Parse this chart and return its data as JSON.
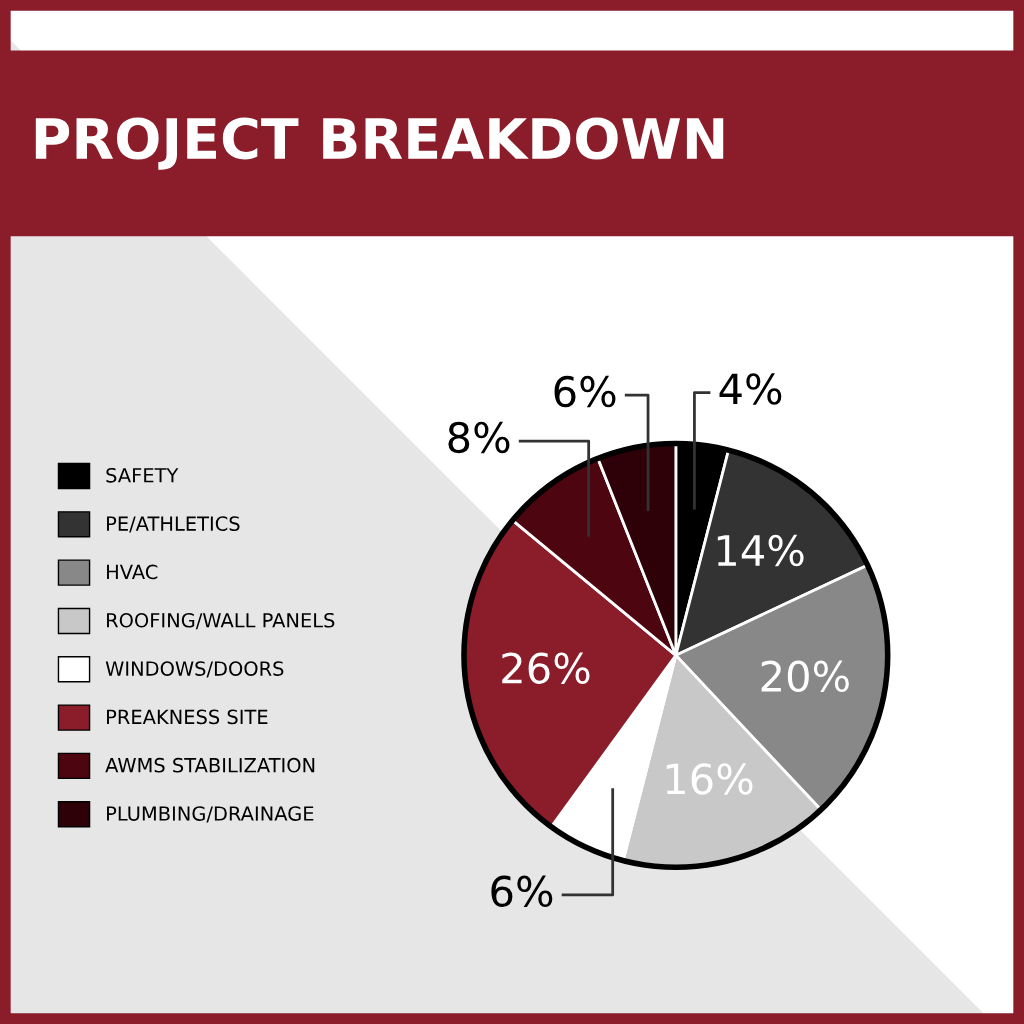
{
  "chart_data": {
    "type": "pie",
    "title": "PROJECT BREAKDOWN",
    "categories": [
      "SAFETY",
      "PE/ATHLETICS",
      "HVAC",
      "ROOFING/WALL PANELS",
      "WINDOWS/DOORS",
      "PREAKNESS SITE",
      "AWMS STABILIZATION",
      "PLUMBING/DRAINAGE"
    ],
    "values": [
      4,
      14,
      20,
      16,
      6,
      26,
      8,
      6
    ],
    "value_labels": [
      "4%",
      "14%",
      "20%",
      "16%",
      "6%",
      "26%",
      "8%",
      "6%"
    ],
    "colors": [
      "#000000",
      "#333333",
      "#888888",
      "#c8c8c8",
      "#ffffff",
      "#8b1c2a",
      "#4d0510",
      "#2e0008"
    ],
    "legend": "left"
  }
}
